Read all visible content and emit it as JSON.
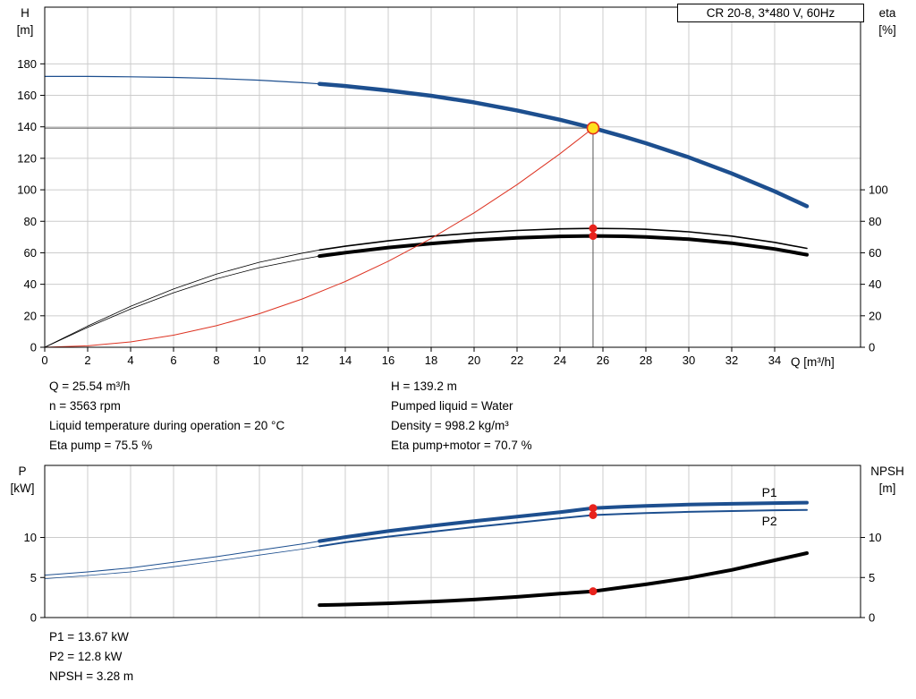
{
  "title_box": "CR 20-8, 3*480 V, 60Hz",
  "axis_labels": {
    "head_1": "H",
    "head_2": "[m]",
    "eta_1": "eta",
    "eta_2": "[%]",
    "q": "Q [m³/h]",
    "power_1": "P",
    "power_2": "[kW]",
    "npsh_1": "NPSH",
    "npsh_2": "[m]"
  },
  "duty_info": {
    "left": [
      "Q = 25.54 m³/h",
      "n = 3563 rpm",
      "Liquid temperature during operation = 20 °C",
      "Eta pump = 75.5 %"
    ],
    "right": [
      "H = 139.2 m",
      "Pumped liquid = Water",
      "Density = 998.2 kg/m³",
      "Eta pump+motor = 70.7 %"
    ]
  },
  "result_info": [
    "P1 = 13.67 kW",
    "P2 = 12.8 kW",
    "NPSH = 3.28 m"
  ],
  "colors": {
    "curve_blue": "#1d4f8f",
    "curve_black": "#000000",
    "curve_red": "#dd3322",
    "duty_fill": "#ffe01e",
    "duty_stroke": "#e03020",
    "marker_red": "#e8231d",
    "grid": "#cccccc",
    "crosshair": "#555555"
  },
  "chart_data": [
    {
      "name": "head-efficiency-chart",
      "type": "line",
      "title": "CR 20-8, 3*480 V, 60Hz",
      "xlabel": "Q [m³/h]",
      "ylabel_left": "H [m]",
      "ylabel_right": "eta [%]",
      "grid": true,
      "xlim": [
        0,
        38
      ],
      "ylim": [
        0,
        216
      ],
      "right_axis_shares_scale": true,
      "xticks": [
        0,
        2,
        4,
        6,
        8,
        10,
        12,
        14,
        16,
        18,
        20,
        22,
        24,
        26,
        28,
        30,
        32,
        34
      ],
      "show_xtick_labels": true,
      "yticks_left": [
        0,
        20,
        40,
        60,
        80,
        100,
        120,
        140,
        160,
        180
      ],
      "yticks_right": [
        0,
        20,
        40,
        60,
        80,
        100
      ],
      "crosshair": {
        "x": 25.54,
        "y": 139.2
      },
      "series": [
        {
          "name": "h-curve",
          "color": "#1d4f8f",
          "split_q": 12.8,
          "width_thin": 1.2,
          "width_thick": 4.5,
          "points": [
            [
              0,
              172
            ],
            [
              2,
              172
            ],
            [
              4,
              171.8
            ],
            [
              6,
              171.4
            ],
            [
              8,
              170.7
            ],
            [
              10,
              169.6
            ],
            [
              12,
              168
            ],
            [
              12.8,
              167.3
            ],
            [
              14,
              165.9
            ],
            [
              16,
              163.1
            ],
            [
              18,
              159.7
            ],
            [
              20,
              155.5
            ],
            [
              22,
              150.4
            ],
            [
              24,
              144.5
            ],
            [
              25.54,
              139.2
            ],
            [
              27,
              133.7
            ],
            [
              28,
              129.6
            ],
            [
              30,
              120.6
            ],
            [
              32,
              110.4
            ],
            [
              34,
              99
            ],
            [
              35.5,
              89.6
            ]
          ]
        },
        {
          "name": "eta-pump-curve",
          "color": "#000000",
          "split_q": 12.8,
          "width_thin": 0.8,
          "width_thick": 1.6,
          "points": [
            [
              0,
              0
            ],
            [
              2,
              13.5
            ],
            [
              4,
              26
            ],
            [
              6,
              37
            ],
            [
              8,
              46.5
            ],
            [
              10,
              54
            ],
            [
              12,
              59.8
            ],
            [
              12.8,
              61.8
            ],
            [
              14,
              64.2
            ],
            [
              16,
              67.6
            ],
            [
              18,
              70.4
            ],
            [
              20,
              72.6
            ],
            [
              22,
              74.2
            ],
            [
              24,
              75.2
            ],
            [
              25.54,
              75.5
            ],
            [
              27,
              75.3
            ],
            [
              28,
              74.9
            ],
            [
              30,
              73.3
            ],
            [
              32,
              70.6
            ],
            [
              34,
              66.6
            ],
            [
              35.5,
              62.8
            ]
          ]
        },
        {
          "name": "eta-pump-motor-curve",
          "color": "#000000",
          "split_q": 12.8,
          "width_thin": 0.8,
          "width_thick": 4,
          "points": [
            [
              0,
              0
            ],
            [
              2,
              12.6
            ],
            [
              4,
              24.3
            ],
            [
              6,
              34.6
            ],
            [
              8,
              43.5
            ],
            [
              10,
              50.6
            ],
            [
              12,
              56
            ],
            [
              12.8,
              57.9
            ],
            [
              14,
              60.1
            ],
            [
              16,
              63.3
            ],
            [
              18,
              65.9
            ],
            [
              20,
              68
            ],
            [
              22,
              69.5
            ],
            [
              24,
              70.4
            ],
            [
              25.54,
              70.7
            ],
            [
              27,
              70.5
            ],
            [
              28,
              70.1
            ],
            [
              30,
              68.6
            ],
            [
              32,
              66.1
            ],
            [
              34,
              62.4
            ],
            [
              35.5,
              58.8
            ]
          ]
        },
        {
          "name": "system-curve",
          "color": "#dd3322",
          "width": 1,
          "points": [
            [
              0,
              0
            ],
            [
              2,
              0.9
            ],
            [
              4,
              3.4
            ],
            [
              6,
              7.7
            ],
            [
              8,
              13.7
            ],
            [
              10,
              21.3
            ],
            [
              12,
              30.7
            ],
            [
              14,
              41.8
            ],
            [
              16,
              54.6
            ],
            [
              18,
              69.1
            ],
            [
              20,
              85.4
            ],
            [
              22,
              103.3
            ],
            [
              24,
              122.9
            ],
            [
              25.54,
              139.2
            ]
          ]
        }
      ],
      "markers": [
        {
          "name": "duty-point",
          "x": 25.54,
          "y": 139.2,
          "r": 6.5,
          "fill": "#ffe01e",
          "stroke": "#e03020"
        },
        {
          "name": "eta-pump-marker",
          "x": 25.54,
          "y": 75.5,
          "r": 4.5,
          "fill": "#e8231d"
        },
        {
          "name": "eta-pump-motor-marker",
          "x": 25.54,
          "y": 70.7,
          "r": 4.5,
          "fill": "#e8231d"
        }
      ],
      "labels": []
    },
    {
      "name": "power-npsh-chart",
      "type": "line",
      "ylabel_left": "P [kW]",
      "ylabel_right": "NPSH [m]",
      "grid": true,
      "xlim": [
        0,
        38
      ],
      "ylim": [
        0,
        19
      ],
      "right_axis_shares_scale": true,
      "xticks": [
        0,
        2,
        4,
        6,
        8,
        10,
        12,
        14,
        16,
        18,
        20,
        22,
        24,
        26,
        28,
        30,
        32,
        34
      ],
      "show_xtick_labels": false,
      "yticks_left": [
        0,
        5,
        10
      ],
      "yticks_right": [
        0,
        5,
        10
      ],
      "series": [
        {
          "name": "p1-curve",
          "color": "#1d4f8f",
          "split_q": 12.8,
          "width_thin": 1,
          "width_thick": 4,
          "points": [
            [
              0,
              5.3
            ],
            [
              2,
              5.7
            ],
            [
              4,
              6.2
            ],
            [
              6,
              6.9
            ],
            [
              8,
              7.6
            ],
            [
              10,
              8.4
            ],
            [
              12,
              9.2
            ],
            [
              12.8,
              9.55
            ],
            [
              14,
              10.05
            ],
            [
              16,
              10.8
            ],
            [
              18,
              11.45
            ],
            [
              20,
              12.05
            ],
            [
              22,
              12.6
            ],
            [
              24,
              13.15
            ],
            [
              25.54,
              13.67
            ],
            [
              27,
              13.85
            ],
            [
              28,
              13.95
            ],
            [
              30,
              14.1
            ],
            [
              32,
              14.2
            ],
            [
              34,
              14.3
            ],
            [
              35.5,
              14.35
            ]
          ]
        },
        {
          "name": "p2-curve",
          "color": "#1d4f8f",
          "split_q": 12.8,
          "width_thin": 0.8,
          "width_thick": 2,
          "points": [
            [
              0,
              4.85
            ],
            [
              2,
              5.25
            ],
            [
              4,
              5.7
            ],
            [
              6,
              6.35
            ],
            [
              8,
              7.05
            ],
            [
              10,
              7.8
            ],
            [
              12,
              8.55
            ],
            [
              12.8,
              8.9
            ],
            [
              14,
              9.4
            ],
            [
              16,
              10.1
            ],
            [
              18,
              10.7
            ],
            [
              20,
              11.3
            ],
            [
              22,
              11.85
            ],
            [
              24,
              12.4
            ],
            [
              25.54,
              12.8
            ],
            [
              27,
              12.95
            ],
            [
              28,
              13.05
            ],
            [
              30,
              13.2
            ],
            [
              32,
              13.3
            ],
            [
              34,
              13.4
            ],
            [
              35.5,
              13.45
            ]
          ]
        },
        {
          "name": "npsh-curve",
          "color": "#000000",
          "width": 4,
          "points": [
            [
              12.8,
              1.55
            ],
            [
              14,
              1.62
            ],
            [
              16,
              1.78
            ],
            [
              18,
              1.98
            ],
            [
              20,
              2.25
            ],
            [
              22,
              2.58
            ],
            [
              24,
              2.98
            ],
            [
              25.54,
              3.28
            ],
            [
              27,
              3.8
            ],
            [
              28,
              4.15
            ],
            [
              30,
              4.95
            ],
            [
              32,
              5.95
            ],
            [
              34,
              7.15
            ],
            [
              35.5,
              8.05
            ]
          ]
        }
      ],
      "markers": [
        {
          "name": "p1-marker",
          "x": 25.54,
          "y": 13.67,
          "r": 4.5,
          "fill": "#e8231d"
        },
        {
          "name": "p2-marker",
          "x": 25.54,
          "y": 12.8,
          "r": 4.5,
          "fill": "#e8231d"
        },
        {
          "name": "npsh-marker",
          "x": 25.54,
          "y": 3.28,
          "r": 4.5,
          "fill": "#e8231d"
        }
      ],
      "labels": [
        {
          "text": "P1",
          "x": 33.4,
          "y": 15.1,
          "color": "#1d4f8f"
        },
        {
          "text": "P2",
          "x": 33.4,
          "y": 11.5,
          "color": "#1d4f8f"
        }
      ]
    }
  ]
}
